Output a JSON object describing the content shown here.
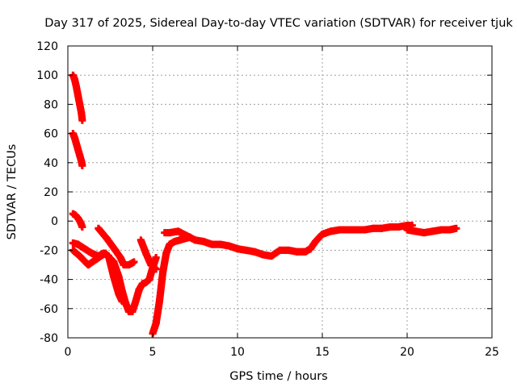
{
  "chart_data": {
    "type": "scatter",
    "title": "Day 317 of 2025, Sidereal Day-to-day VTEC variation (SDTVAR) for receiver tjuk",
    "xlabel": "GPS time / hours",
    "ylabel": "SDTVAR / TECUs",
    "xlim": [
      0,
      25
    ],
    "ylim": [
      -80,
      120
    ],
    "xticks": [
      0,
      5,
      10,
      15,
      20,
      25
    ],
    "yticks": [
      -80,
      -60,
      -40,
      -20,
      0,
      20,
      40,
      60,
      80,
      100,
      120
    ],
    "grid": true,
    "marker": "plus",
    "color": "#ff0000",
    "series": [
      {
        "name": "track-1",
        "x": [
          0.3,
          0.4,
          0.5,
          0.6,
          0.7,
          0.8,
          0.85
        ],
        "y": [
          100,
          97,
          92,
          86,
          80,
          74,
          69
        ]
      },
      {
        "name": "track-2",
        "x": [
          0.3,
          0.4,
          0.5,
          0.6,
          0.7,
          0.8,
          0.85
        ],
        "y": [
          60,
          57,
          53,
          49,
          45,
          41,
          38
        ]
      },
      {
        "name": "track-3",
        "x": [
          0.3,
          0.45,
          0.6,
          0.75,
          0.85
        ],
        "y": [
          5,
          4,
          2,
          -1,
          -4
        ]
      },
      {
        "name": "track-4",
        "x": [
          0.3,
          0.6,
          1.0,
          1.4,
          1.8,
          2.1,
          2.4,
          2.7,
          3.0,
          3.2
        ],
        "y": [
          -15,
          -16,
          -19,
          -22,
          -24,
          -22,
          -24,
          -38,
          -50,
          -55
        ]
      },
      {
        "name": "track-5",
        "x": [
          0.3,
          0.7,
          1.2,
          1.7,
          2.2,
          2.7,
          3.0,
          3.2,
          3.4,
          3.6,
          3.8,
          4.0,
          4.2,
          4.4,
          4.6,
          4.8,
          5.0,
          5.2
        ],
        "y": [
          -20,
          -24,
          -30,
          -26,
          -22,
          -28,
          -38,
          -48,
          -56,
          -62,
          -62,
          -55,
          -47,
          -43,
          -42,
          -40,
          -32,
          -25
        ]
      },
      {
        "name": "track-6",
        "x": [
          1.8,
          2.3,
          2.8,
          3.1,
          3.3,
          3.6,
          3.9
        ],
        "y": [
          -5,
          -12,
          -20,
          -25,
          -30,
          -30,
          -28
        ]
      },
      {
        "name": "track-7",
        "x": [
          4.3,
          4.6,
          4.9,
          5.2
        ],
        "y": [
          -13,
          -22,
          -30,
          -33
        ]
      },
      {
        "name": "track-8",
        "x": [
          5.0,
          5.2,
          5.4,
          5.6,
          5.8,
          6.0,
          6.3,
          6.6,
          6.9,
          7.2
        ],
        "y": [
          -77,
          -70,
          -55,
          -35,
          -22,
          -16,
          -14,
          -13,
          -12,
          -11
        ]
      },
      {
        "name": "track-9",
        "x": [
          5.7,
          6.0,
          6.5,
          7.0,
          7.5,
          8.0,
          8.5,
          9.0,
          9.5,
          10.0,
          10.5,
          11.0,
          11.5,
          12.0,
          12.5,
          13.0,
          13.5,
          14.0,
          14.3,
          14.6,
          15.0,
          15.5,
          16.0,
          16.5,
          17.0,
          17.5,
          18.0,
          18.5,
          19.0,
          19.5,
          20.0,
          20.3
        ],
        "y": [
          -8,
          -8,
          -7,
          -10,
          -13,
          -14,
          -16,
          -16,
          -17,
          -19,
          -20,
          -21,
          -23,
          -24,
          -20,
          -20,
          -21,
          -21,
          -19,
          -14,
          -9,
          -7,
          -6,
          -6,
          -6,
          -6,
          -5,
          -5,
          -4,
          -4,
          -3,
          -3
        ]
      },
      {
        "name": "track-10",
        "x": [
          20.0,
          20.5,
          21.0,
          21.5,
          22.0,
          22.5,
          22.9
        ],
        "y": [
          -6,
          -7,
          -8,
          -7,
          -6,
          -6,
          -5
        ]
      }
    ]
  }
}
